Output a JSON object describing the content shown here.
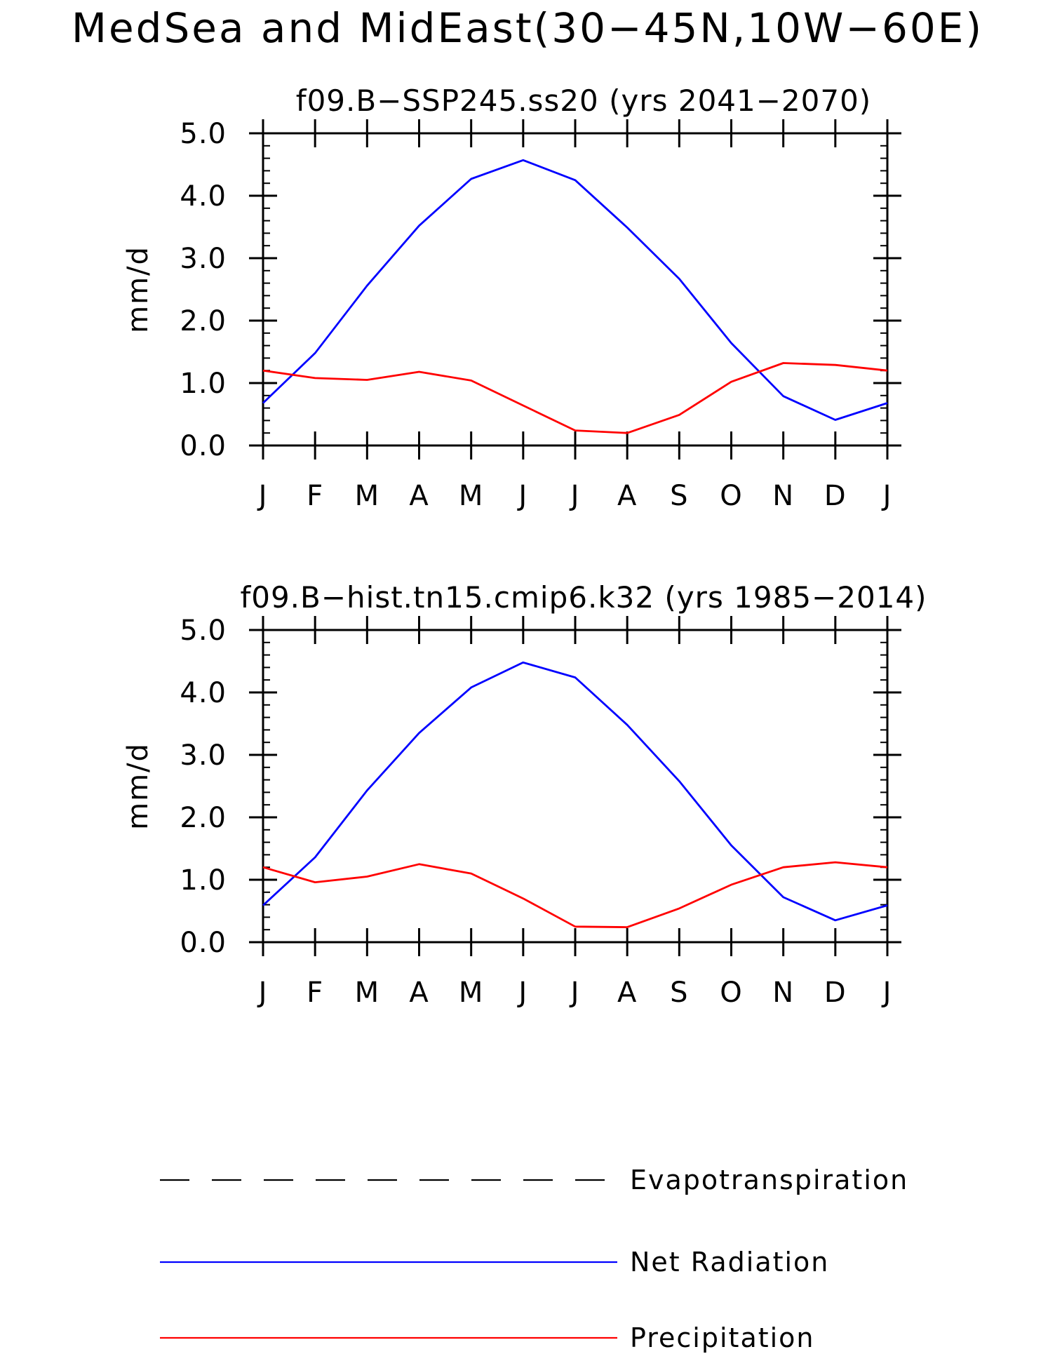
{
  "figure": {
    "title": "MedSea and MidEast(30−45N,10W−60E)"
  },
  "colors": {
    "net_radiation": "#0000ff",
    "precipitation": "#ff0000",
    "evapotranspiration": "#000000",
    "axis": "#000000"
  },
  "chart_data": [
    {
      "type": "line",
      "title": "f09.B−SSP245.ss20 (yrs 2041−2070)",
      "xlabel": "",
      "ylabel": "mm/d",
      "ylim": [
        0,
        5
      ],
      "yticks": [
        "0.0",
        "1.0",
        "2.0",
        "3.0",
        "4.0",
        "5.0"
      ],
      "categories": [
        "J",
        "F",
        "M",
        "A",
        "M",
        "J",
        "J",
        "A",
        "S",
        "O",
        "N",
        "D",
        "J"
      ],
      "grid": false,
      "series": [
        {
          "name": "Net Radiation",
          "color": "#0000ff",
          "values": [
            0.68,
            1.48,
            2.56,
            3.52,
            4.27,
            4.57,
            4.25,
            3.49,
            2.67,
            1.64,
            0.79,
            0.41,
            0.68
          ]
        },
        {
          "name": "Precipitation",
          "color": "#ff0000",
          "values": [
            1.2,
            1.08,
            1.05,
            1.18,
            1.04,
            0.64,
            0.24,
            0.2,
            0.49,
            1.02,
            1.32,
            1.29,
            1.2
          ]
        }
      ]
    },
    {
      "type": "line",
      "title": "f09.B−hist.tn15.cmip6.k32 (yrs 1985−2014)",
      "xlabel": "",
      "ylabel": "mm/d",
      "ylim": [
        0,
        5
      ],
      "yticks": [
        "0.0",
        "1.0",
        "2.0",
        "3.0",
        "4.0",
        "5.0"
      ],
      "categories": [
        "J",
        "F",
        "M",
        "A",
        "M",
        "J",
        "J",
        "A",
        "S",
        "O",
        "N",
        "D",
        "J"
      ],
      "grid": false,
      "series": [
        {
          "name": "Net Radiation",
          "color": "#0000ff",
          "values": [
            0.59,
            1.36,
            2.43,
            3.35,
            4.08,
            4.48,
            4.24,
            3.48,
            2.58,
            1.55,
            0.72,
            0.35,
            0.59
          ]
        },
        {
          "name": "Precipitation",
          "color": "#ff0000",
          "values": [
            1.2,
            0.96,
            1.05,
            1.25,
            1.1,
            0.7,
            0.25,
            0.24,
            0.54,
            0.92,
            1.2,
            1.28,
            1.2
          ]
        }
      ]
    }
  ],
  "legend": {
    "placement": "bottom",
    "items": [
      {
        "label": "Evapotranspiration",
        "color": "#000000",
        "style": "dashed"
      },
      {
        "label": "Net Radiation",
        "color": "#0000ff",
        "style": "solid"
      },
      {
        "label": "Precipitation",
        "color": "#ff0000",
        "style": "solid"
      }
    ]
  }
}
